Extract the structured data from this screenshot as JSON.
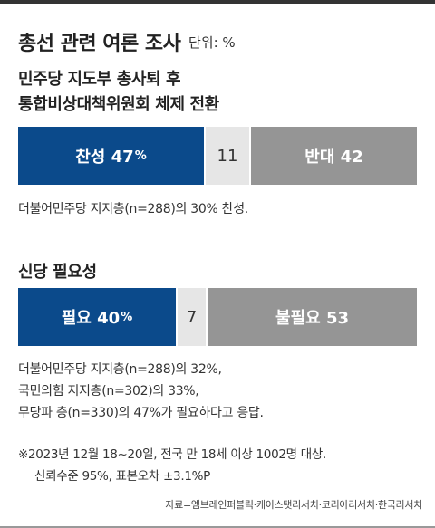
{
  "header": {
    "title": "총선 관련 여론 조사",
    "unit": "단위: %"
  },
  "chart_data": [
    {
      "type": "bar",
      "title": "민주당 지도부 총사퇴 후 통합비상대책위원회 체제 전환",
      "series": [
        {
          "name": "찬성",
          "value": 47
        },
        {
          "name": "",
          "value": 11
        },
        {
          "name": "반대",
          "value": 42
        }
      ],
      "note": "더불어민주당 지지층(n=288)의 30% 찬성."
    },
    {
      "type": "bar",
      "title": "신당 필요성",
      "series": [
        {
          "name": "필요",
          "value": 40
        },
        {
          "name": "",
          "value": 7
        },
        {
          "name": "불필요",
          "value": 53
        }
      ],
      "note_lines": [
        "더불어민주당 지지층(n=288)의 32%,",
        "국민의힘 지지층(n=302)의 33%,",
        "무당파 층(n=330)의 47%가 필요하다고 응답."
      ]
    }
  ],
  "q1": {
    "line1": "민주당 지도부 총사퇴 후",
    "line2": "통합비상대책위원회 체제 전환"
  },
  "footnote": {
    "line1": "※2023년 12월 18~20일, 전국 만 18세 이상 1002명 대상.",
    "line2": "신뢰수준 95%, 표본오차  ±3.1%P"
  },
  "source": "자료=엠브레인퍼블릭·케이스탯리서치·코리아리서치·한국리서치",
  "colors": {
    "positive": "#0b4a8b",
    "neutral": "#e6e6e6",
    "negative": "#959595"
  }
}
